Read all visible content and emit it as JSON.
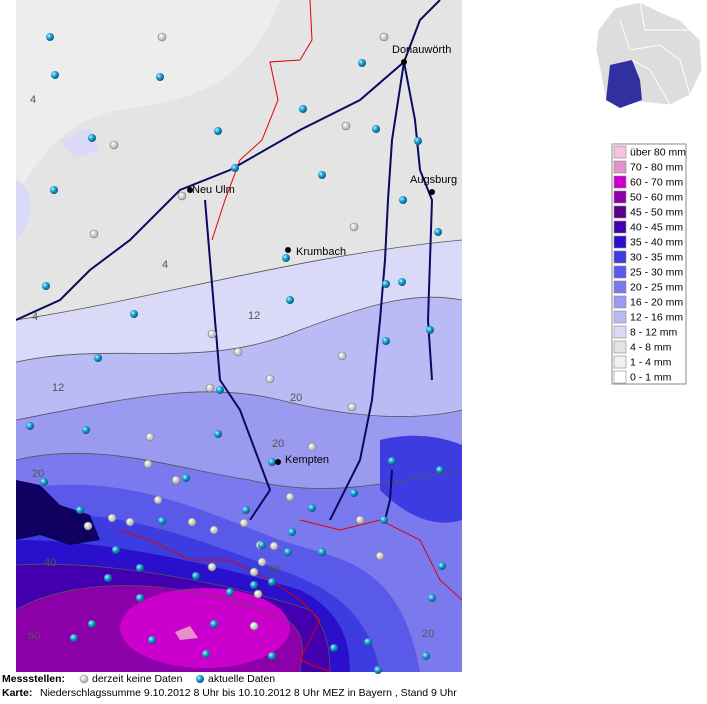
{
  "map": {
    "cities": [
      "Donauwörth",
      "Augsburg",
      "Neu Ulm",
      "Krumbach",
      "Kempten"
    ],
    "contour_labels": [
      "4",
      "4",
      "4",
      "12",
      "12",
      "20",
      "20",
      "20",
      "40",
      "40",
      "50",
      "20"
    ]
  },
  "legend": {
    "items": [
      {
        "label": "über 80 mm",
        "color": "#f6c4de"
      },
      {
        "label": "70 - 80 mm",
        "color": "#e690cc"
      },
      {
        "label": "60 - 70 mm",
        "color": "#cc00cc"
      },
      {
        "label": "50 - 60 mm",
        "color": "#8c00aa"
      },
      {
        "label": "45 - 50 mm",
        "color": "#5c0088"
      },
      {
        "label": "40 - 45 mm",
        "color": "#4400b0"
      },
      {
        "label": "35 - 40 mm",
        "color": "#2a10cc"
      },
      {
        "label": "30 - 35 mm",
        "color": "#3c3ce0"
      },
      {
        "label": "25 - 30 mm",
        "color": "#5a5aea"
      },
      {
        "label": "20 - 25 mm",
        "color": "#7a7aee"
      },
      {
        "label": "16 - 20 mm",
        "color": "#9a9af0"
      },
      {
        "label": "12 - 16 mm",
        "color": "#babaf4"
      },
      {
        "label": "8 - 12 mm",
        "color": "#dadaf8"
      },
      {
        "label": "4 -   8 mm",
        "color": "#e4e4e4"
      },
      {
        "label": "1 -   4 mm",
        "color": "#f2f2f2"
      },
      {
        "label": "0 -   1 mm",
        "color": "#ffffff"
      }
    ]
  },
  "footer": {
    "stations_label": "Messstellen:",
    "no_data": "derzeit keine Daten",
    "current": "aktuelle Daten",
    "map_label": "Karte:",
    "description": "Niederschlagssumme 9.10.2012 8 Uhr bis 10.10.2012 8 Uhr MEZ in Bayern , Stand 9 Uhr"
  }
}
